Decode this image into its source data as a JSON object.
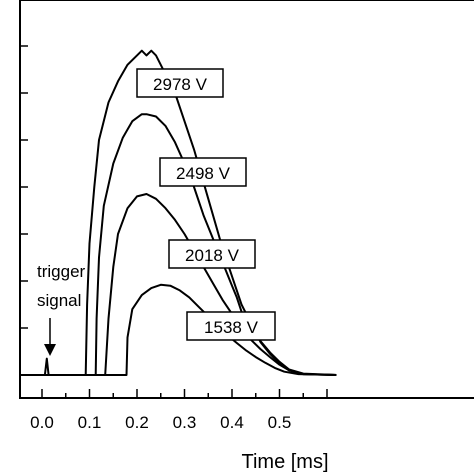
{
  "chart_data": {
    "type": "line",
    "title": "",
    "xlabel": "Time [ms]",
    "ylabel": "",
    "xlim": [
      -0.05,
      0.62
    ],
    "ylim": [
      -0.6,
      7.2
    ],
    "x_ticks": [
      0.0,
      0.1,
      0.2,
      0.3,
      0.4,
      0.5
    ],
    "x_tick_labels": [
      "0.0",
      "0.1",
      "0.2",
      "0.3",
      "0.4",
      "0.5"
    ],
    "y_ticks": [
      0,
      1,
      2,
      3,
      4,
      5,
      6,
      7
    ],
    "y_tick_labels": [
      "",
      "",
      "",
      "",
      "",
      "",
      "",
      ""
    ],
    "grid": false,
    "trigger": {
      "text_line1": "trigger",
      "text_line2": "signal",
      "x": 0.01,
      "value": 0.35
    },
    "series": [
      {
        "name": "2978 V",
        "points": [
          [
            -0.05,
            0
          ],
          [
            0.08,
            0
          ],
          [
            0.092,
            0
          ],
          [
            0.095,
            1.5
          ],
          [
            0.1,
            2.8
          ],
          [
            0.11,
            4.0
          ],
          [
            0.12,
            5.0
          ],
          [
            0.14,
            5.8
          ],
          [
            0.16,
            6.25
          ],
          [
            0.18,
            6.6
          ],
          [
            0.2,
            6.8
          ],
          [
            0.21,
            6.9
          ],
          [
            0.22,
            6.8
          ],
          [
            0.23,
            6.9
          ],
          [
            0.24,
            6.8
          ],
          [
            0.26,
            6.4
          ],
          [
            0.28,
            6.0
          ],
          [
            0.3,
            5.4
          ],
          [
            0.32,
            4.8
          ],
          [
            0.34,
            4.1
          ],
          [
            0.36,
            3.4
          ],
          [
            0.38,
            2.7
          ],
          [
            0.4,
            2.1
          ],
          [
            0.42,
            1.5
          ],
          [
            0.44,
            1.1
          ],
          [
            0.46,
            0.7
          ],
          [
            0.48,
            0.45
          ],
          [
            0.5,
            0.25
          ],
          [
            0.52,
            0.1
          ],
          [
            0.55,
            0.02
          ],
          [
            0.62,
            0
          ]
        ]
      },
      {
        "name": "2498 V",
        "points": [
          [
            -0.05,
            0
          ],
          [
            0.11,
            0
          ],
          [
            0.113,
            0
          ],
          [
            0.115,
            1.2
          ],
          [
            0.12,
            2.5
          ],
          [
            0.13,
            3.6
          ],
          [
            0.15,
            4.5
          ],
          [
            0.17,
            5.05
          ],
          [
            0.19,
            5.4
          ],
          [
            0.21,
            5.55
          ],
          [
            0.22,
            5.55
          ],
          [
            0.24,
            5.5
          ],
          [
            0.26,
            5.3
          ],
          [
            0.28,
            4.95
          ],
          [
            0.3,
            4.5
          ],
          [
            0.32,
            4.0
          ],
          [
            0.34,
            3.4
          ],
          [
            0.36,
            2.9
          ],
          [
            0.38,
            2.4
          ],
          [
            0.4,
            1.9
          ],
          [
            0.41,
            1.65
          ],
          [
            0.42,
            1.35
          ],
          [
            0.44,
            1.0
          ],
          [
            0.46,
            0.72
          ],
          [
            0.48,
            0.48
          ],
          [
            0.5,
            0.28
          ],
          [
            0.52,
            0.12
          ],
          [
            0.55,
            0.03
          ],
          [
            0.62,
            0
          ]
        ]
      },
      {
        "name": "2018 V",
        "points": [
          [
            -0.05,
            0
          ],
          [
            0.13,
            0
          ],
          [
            0.133,
            0
          ],
          [
            0.14,
            1.2
          ],
          [
            0.15,
            2.3
          ],
          [
            0.16,
            3.0
          ],
          [
            0.18,
            3.55
          ],
          [
            0.2,
            3.8
          ],
          [
            0.22,
            3.85
          ],
          [
            0.24,
            3.75
          ],
          [
            0.26,
            3.55
          ],
          [
            0.28,
            3.3
          ],
          [
            0.3,
            3.0
          ],
          [
            0.32,
            2.65
          ],
          [
            0.34,
            2.3
          ],
          [
            0.36,
            1.95
          ],
          [
            0.38,
            1.6
          ],
          [
            0.4,
            1.3
          ],
          [
            0.42,
            1.0
          ],
          [
            0.44,
            0.75
          ],
          [
            0.46,
            0.55
          ],
          [
            0.48,
            0.38
          ],
          [
            0.5,
            0.22
          ],
          [
            0.52,
            0.1
          ],
          [
            0.55,
            0.02
          ],
          [
            0.62,
            0
          ]
        ]
      },
      {
        "name": "1538 V",
        "points": [
          [
            -0.05,
            0
          ],
          [
            0.175,
            0
          ],
          [
            0.178,
            0
          ],
          [
            0.18,
            0.8
          ],
          [
            0.19,
            1.4
          ],
          [
            0.21,
            1.7
          ],
          [
            0.23,
            1.85
          ],
          [
            0.25,
            1.92
          ],
          [
            0.27,
            1.9
          ],
          [
            0.29,
            1.8
          ],
          [
            0.31,
            1.65
          ],
          [
            0.33,
            1.45
          ],
          [
            0.35,
            1.25
          ],
          [
            0.37,
            1.05
          ],
          [
            0.39,
            0.85
          ],
          [
            0.41,
            0.68
          ],
          [
            0.43,
            0.52
          ],
          [
            0.45,
            0.38
          ],
          [
            0.47,
            0.26
          ],
          [
            0.49,
            0.15
          ],
          [
            0.51,
            0.07
          ],
          [
            0.54,
            0.02
          ],
          [
            0.62,
            0
          ]
        ]
      }
    ],
    "trigger_series": {
      "points": [
        [
          0.0,
          0
        ],
        [
          0.006,
          0
        ],
        [
          0.01,
          0.35
        ],
        [
          0.014,
          0
        ],
        [
          0.02,
          0
        ]
      ]
    }
  },
  "series_labels": [
    {
      "text": "2978 V"
    },
    {
      "text": "2498 V"
    },
    {
      "text": "2018 V"
    },
    {
      "text": "1538 V"
    }
  ]
}
